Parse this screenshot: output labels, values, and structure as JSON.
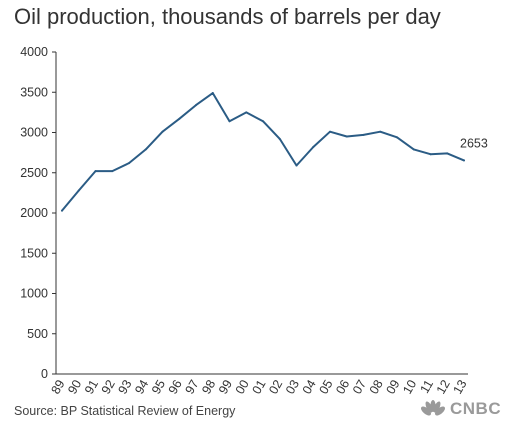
{
  "title": "Oil production, thousands of barrels per day",
  "source": "Source: BP Statistical Review of Energy",
  "logo_text": "CNBC",
  "colors": {
    "line": "#2b5c85",
    "axis": "#333333",
    "text": "#333333"
  },
  "chart_data": {
    "type": "line",
    "title": "Oil production, thousands of barrels per day",
    "xlabel": "",
    "ylabel": "",
    "categories": [
      "89",
      "90",
      "91",
      "92",
      "93",
      "94",
      "95",
      "96",
      "97",
      "98",
      "99",
      "00",
      "01",
      "02",
      "03",
      "04",
      "05",
      "06",
      "07",
      "08",
      "09",
      "10",
      "11",
      "12",
      "13"
    ],
    "series": [
      {
        "values": [
          2030,
          2280,
          2520,
          2520,
          2620,
          2790,
          3010,
          3170,
          3340,
          3490,
          3140,
          3250,
          3140,
          2920,
          2590,
          2820,
          3010,
          2950,
          2970,
          3010,
          2940,
          2790,
          2730,
          2740,
          2653
        ]
      }
    ],
    "ylim": [
      0,
      4000
    ],
    "yticks": [
      0,
      500,
      1000,
      1500,
      2000,
      2500,
      3000,
      3500,
      4000
    ],
    "annotation": {
      "text": "2653",
      "category": "13",
      "value": 2653
    },
    "grid": false,
    "legend": "none"
  }
}
